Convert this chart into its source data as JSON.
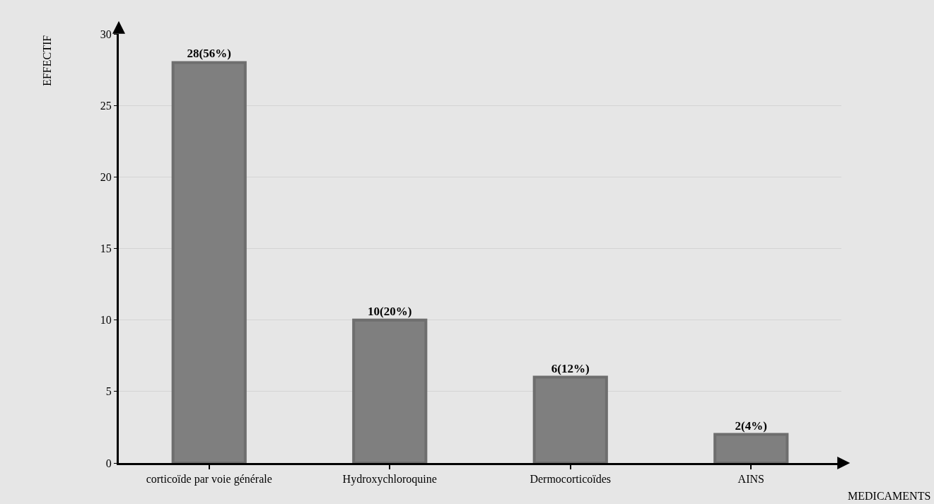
{
  "chart_data": {
    "type": "bar",
    "xlabel": "MEDICAMENTS",
    "ylabel": "EFFECTIF",
    "categories": [
      "corticoïde par voie générale",
      "Hydroxychloroquine",
      "Dermocorticoïdes",
      "AINS"
    ],
    "values": [
      28,
      10,
      6,
      2
    ],
    "value_labels": [
      "28(56%)",
      "10(20%)",
      "6(12%)",
      "2(4%)"
    ],
    "color": "#7f7f7f",
    "ylim": [
      0,
      30
    ],
    "yticks": [
      0,
      5,
      10,
      15,
      20,
      25,
      30
    ],
    "grid": "y"
  }
}
